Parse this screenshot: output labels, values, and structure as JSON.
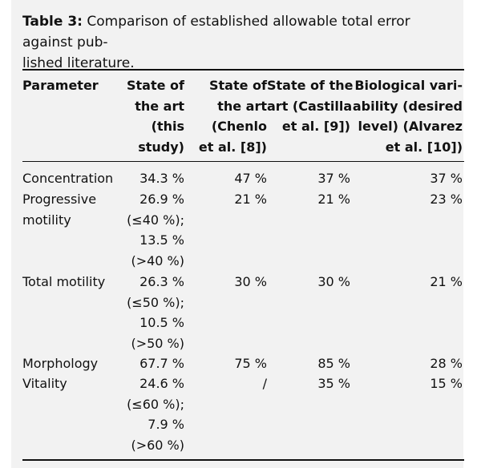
{
  "caption": {
    "label": "Table 3:",
    "line1": " Comparison of established allowable total error against pub-",
    "line2": "lished literature."
  },
  "headers": {
    "parameter": [
      "Parameter"
    ],
    "this_study": [
      "State of",
      "the art",
      "(this",
      "study)"
    ],
    "chenlo": [
      "State of",
      "the art",
      "(Chenlo",
      "et al. [8])"
    ],
    "castilla": [
      "State of the",
      "art (Castilla",
      "et al. [9])"
    ],
    "alvarez": [
      "Biological vari-",
      "ability (desired",
      "level) (Alvarez",
      "et al. [10])"
    ]
  },
  "rows": [
    {
      "parameter": [
        "Concentration"
      ],
      "this_study": [
        "34.3 %"
      ],
      "chenlo": "47 %",
      "castilla": "37 %",
      "alvarez": "37 %"
    },
    {
      "parameter": [
        "Progressive",
        "motility"
      ],
      "this_study": [
        "26.9 %",
        "(≤40 %);",
        "13.5 %",
        "(>40 %)"
      ],
      "chenlo": "21 %",
      "castilla": "21 %",
      "alvarez": "23 %"
    },
    {
      "parameter": [
        "Total motility"
      ],
      "this_study": [
        "26.3 %",
        "(≤50 %);",
        "10.5 %",
        "(>50 %)"
      ],
      "chenlo": "30 %",
      "castilla": "30 %",
      "alvarez": "21 %"
    },
    {
      "parameter": [
        "Morphology"
      ],
      "this_study": [
        "67.7 %"
      ],
      "chenlo": "75 %",
      "castilla": "85 %",
      "alvarez": "28 %"
    },
    {
      "parameter": [
        "Vitality"
      ],
      "this_study": [
        "24.6 %",
        "(≤60 %);",
        "7.9 %",
        "(>60 %)"
      ],
      "chenlo": "/",
      "castilla": "35 %",
      "alvarez": "15 %"
    }
  ]
}
